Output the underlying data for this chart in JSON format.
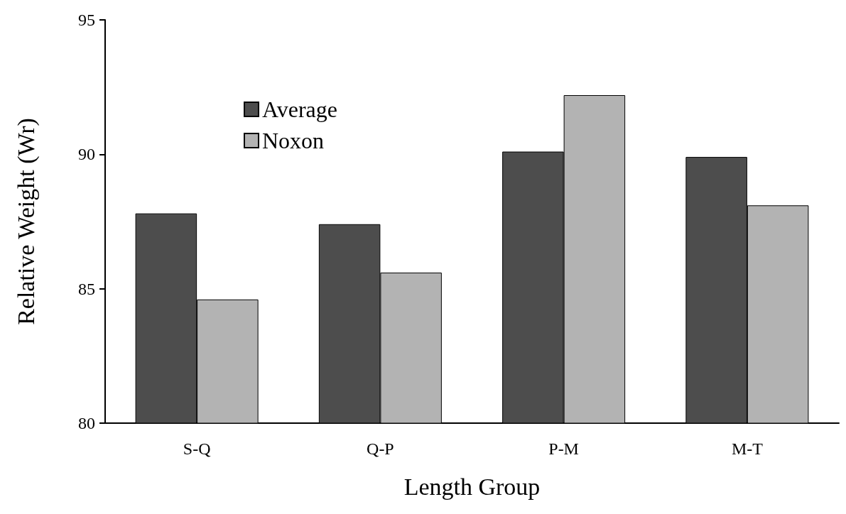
{
  "chart_data": {
    "type": "bar",
    "xlabel": "Length Group",
    "ylabel": "Relative Weight (Wr)",
    "categories": [
      "S-Q",
      "Q-P",
      "P-M",
      "M-T"
    ],
    "series": [
      {
        "name": "Average",
        "color": "#4d4d4d",
        "values": [
          87.8,
          87.4,
          90.1,
          89.9
        ]
      },
      {
        "name": "Noxon",
        "color": "#b3b3b3",
        "values": [
          84.6,
          85.6,
          92.2,
          88.1
        ]
      }
    ],
    "ylim": [
      80,
      95
    ],
    "yticks": [
      80,
      85,
      90,
      95
    ],
    "grid": false,
    "legend": "top left"
  }
}
